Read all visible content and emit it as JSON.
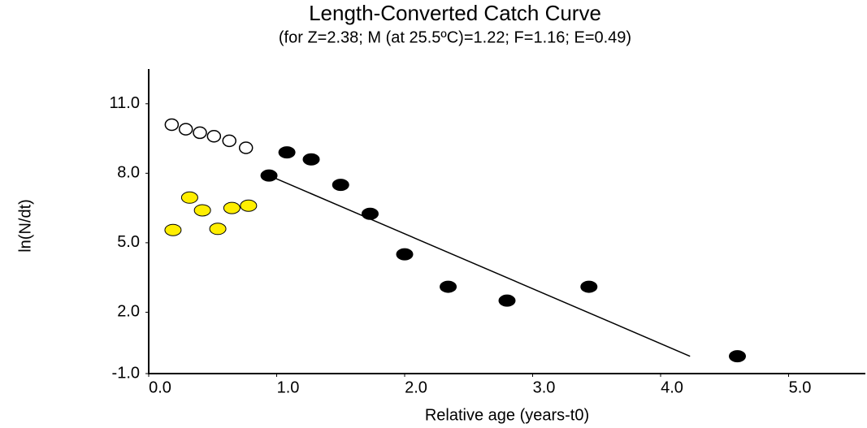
{
  "chart_data": {
    "type": "scatter",
    "title": "Length-Converted Catch Curve",
    "subtitle": "(for Z=2.38; M (at 25.5ºC)=1.22; F=1.16; E=0.49)",
    "x_label": "Relative age (years-t0)",
    "y_label": "ln(N/dt)",
    "xlim": [
      0,
      5.6
    ],
    "ylim": [
      -1,
      12.5
    ],
    "xticks": [
      {
        "value": 0,
        "label": "0.0"
      },
      {
        "value": 1,
        "label": "1.0"
      },
      {
        "value": 2,
        "label": "2.0"
      },
      {
        "value": 3,
        "label": "3.0"
      },
      {
        "value": 4,
        "label": "4.0"
      },
      {
        "value": 5,
        "label": "5.0"
      }
    ],
    "yticks": [
      {
        "value": -1,
        "label": "-1.0"
      },
      {
        "value": 2,
        "label": "2.0"
      },
      {
        "value": 5,
        "label": "5.0"
      },
      {
        "value": 8,
        "label": "8.0"
      },
      {
        "value": 11,
        "label": "11.0"
      }
    ],
    "series": [
      {
        "marker": "open",
        "color": "#ffffff",
        "x": [
          0.18,
          0.29,
          0.4,
          0.51,
          0.63,
          0.76
        ],
        "values": [
          10.1,
          9.9,
          9.75,
          9.6,
          9.4,
          9.1
        ]
      },
      {
        "marker": "filled",
        "color": "#ffee00",
        "x": [
          0.19,
          0.32,
          0.42,
          0.54,
          0.65,
          0.78
        ],
        "values": [
          5.55,
          6.95,
          6.4,
          5.6,
          6.5,
          6.6
        ]
      },
      {
        "marker": "filled",
        "color": "#000000",
        "x": [
          0.94,
          1.08,
          1.27,
          1.5,
          1.73,
          2.0,
          2.34,
          2.8,
          3.44,
          4.6
        ],
        "values": [
          7.9,
          8.9,
          8.6,
          7.5,
          6.25,
          4.5,
          3.1,
          2.5,
          3.1,
          0.1
        ]
      },
      {
        "marker": "line",
        "color": "#000000",
        "x": [
          0.94,
          4.23
        ],
        "values": [
          7.9,
          0.1
        ]
      }
    ]
  }
}
